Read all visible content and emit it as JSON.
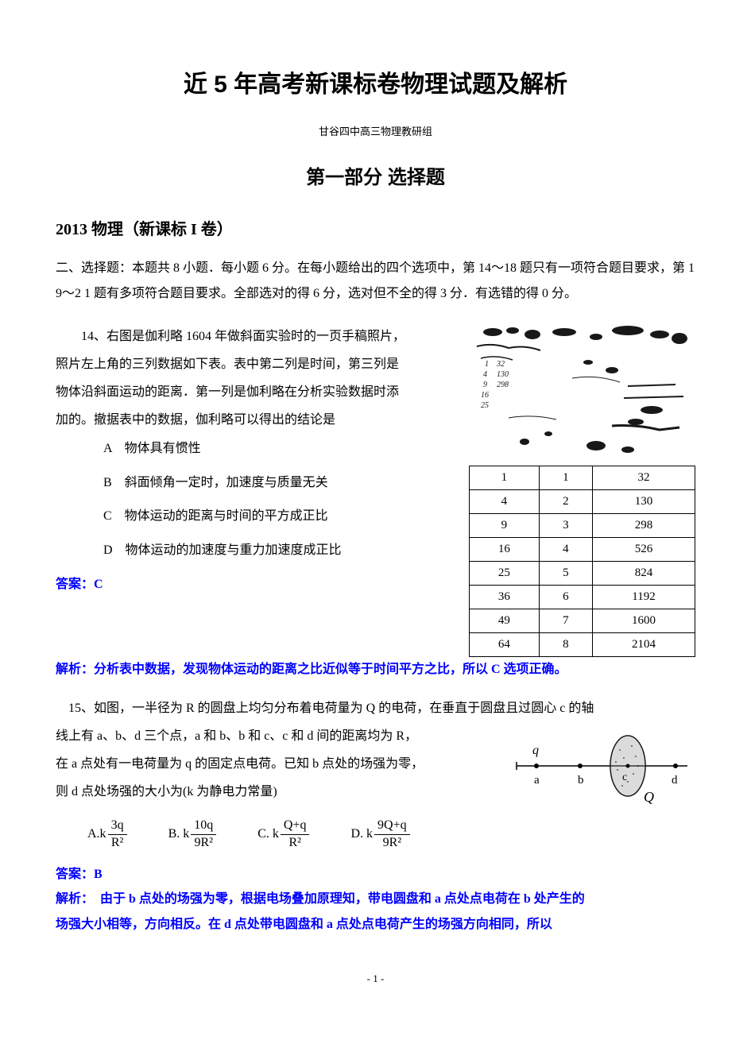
{
  "main_title": "近 5 年高考新课标卷物理试题及解析",
  "subtitle": "甘谷四中高三物理教研组",
  "section_title": "第一部分 选择题",
  "year_title": "2013 物理（新课标 I 卷）",
  "instructions": "二、选择题：本题共 8 小题．每小题 6 分。在每小题给出的四个选项中，第 14～18 题只有一项符合题目要求，第 1 9～2 1 题有多项符合题目要求。全部选对的得 6 分，选对但不全的得 3 分．有选错的得 0 分。",
  "q14": {
    "stem1": "14、右图是伽利略 1604 年做斜面实验时的一页手稿照片，",
    "stem2": "照片左上角的三列数据如下表。表中第二列是时间，第三列是",
    "stem3": "物体沿斜面运动的距离．第一列是伽利略在分析实验数据时添",
    "stem4": "加的。撤据表中的数据，伽利略可以得出的结论是",
    "optA": "A　物体具有惯性",
    "optB": "B　斜面倾角一定时，加速度与质量无关",
    "optC": "C　物体运动的距离与时间的平方成正比",
    "optD": "D　物体运动的加速度与重力加速度成正比",
    "answer": "答案：C",
    "analysis": "解析：分析表中数据，发现物体运动的距离之比近似等于时间平方之比，所以 C 选项正确。",
    "table": {
      "rows": [
        [
          "1",
          "1",
          "32"
        ],
        [
          "4",
          "2",
          "130"
        ],
        [
          "9",
          "3",
          "298"
        ],
        [
          "16",
          "4",
          "526"
        ],
        [
          "25",
          "5",
          "824"
        ],
        [
          "36",
          "6",
          "1192"
        ],
        [
          "49",
          "7",
          "1600"
        ],
        [
          "64",
          "8",
          "2104"
        ]
      ]
    }
  },
  "q15": {
    "stem1": "15、如图，一半径为 R 的圆盘上均匀分布着电荷量为 Q 的电荷，在垂直于圆盘且过圆心 c 的轴",
    "stem2": "线上有 a、b、d 三个点，a 和 b、b 和 c、c 和 d 间的距离均为 R，",
    "stem3": "在 a 点处有一电荷量为 q 的固定点电荷。已知 b 点处的场强为零，",
    "stem4": "则 d 点处场强的大小为(k 为静电力常量)",
    "optA_label": "A.k",
    "optA_num": "3q",
    "optA_den": "R²",
    "optB_label": "B. k",
    "optB_num": "10q",
    "optB_den": "9R²",
    "optC_label": "C. k",
    "optC_num": "Q+q",
    "optC_den": "R²",
    "optD_label": "D. k",
    "optD_num": "9Q+q",
    "optD_den": "9R²",
    "answer": "答案：B",
    "analysis1": "解析：　由于 b 点处的场强为零，根据电场叠加原理知，带电圆盘和 a 点处点电荷在 b 处产生的",
    "analysis2": "场强大小相等，方向相反。在 d 点处带电圆盘和 a 点处点电荷产生的场强方向相同，所以",
    "diagram": {
      "q_label": "q",
      "a_label": "a",
      "b_label": "b",
      "c_label": "c",
      "d_label": "d",
      "Q_label": "Q"
    }
  },
  "page_number": "- 1 -",
  "colors": {
    "text": "#000000",
    "answer": "#0000ff",
    "background": "#ffffff"
  }
}
